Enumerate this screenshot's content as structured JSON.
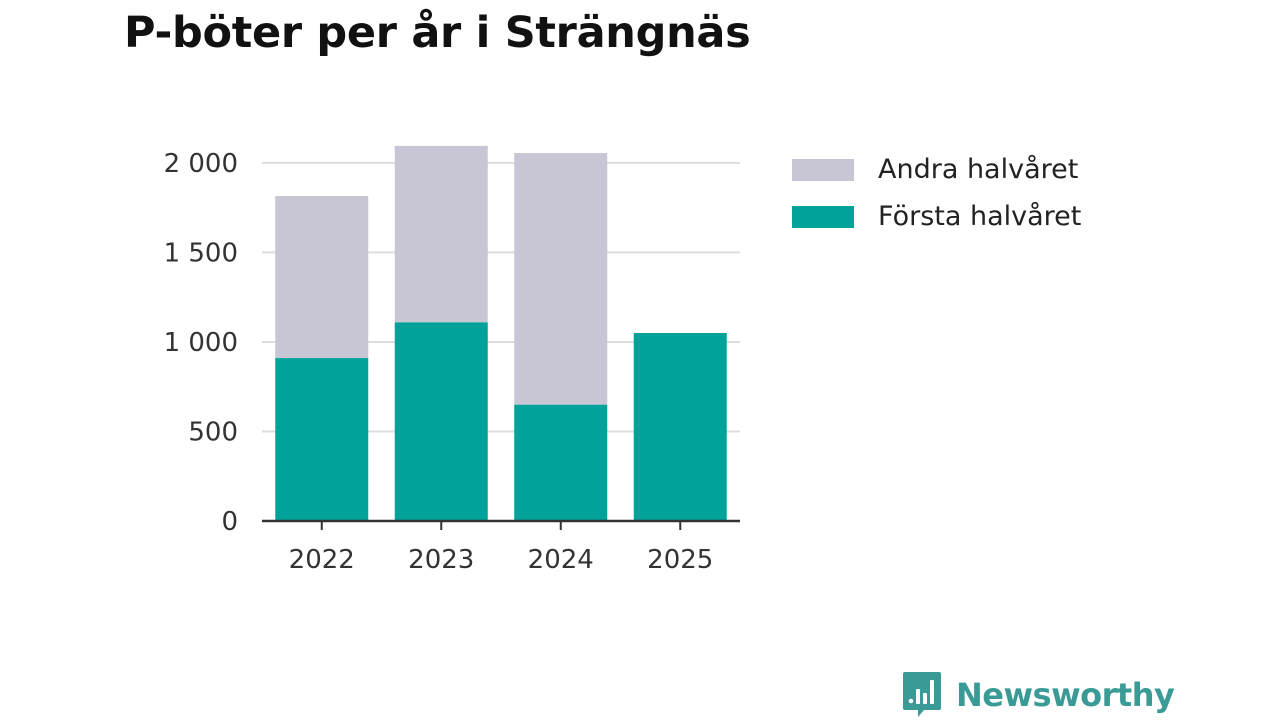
{
  "colors": {
    "first_half": "#00a29a",
    "second_half": "#c8c6d4",
    "brand": "#3a9a96"
  },
  "chart_data": {
    "type": "bar",
    "stacked": true,
    "title": "P-böter per år i Strängnäs",
    "categories": [
      "2022",
      "2023",
      "2024",
      "2025"
    ],
    "series": [
      {
        "name": "Första halvåret",
        "values": [
          910,
          1110,
          650,
          1050
        ]
      },
      {
        "name": "Andra halvåret",
        "values": [
          905,
          985,
          1405,
          0
        ]
      }
    ],
    "ylim": [
      0,
      2100
    ],
    "yticks": [
      0,
      500,
      1000,
      1500,
      2000
    ],
    "ytick_labels": [
      "0",
      "500",
      "1 000",
      "1 500",
      "2 000"
    ],
    "xlabel": "",
    "ylabel": "",
    "grid": true,
    "legend_position": "right",
    "legend": [
      "Andra halvåret",
      "Första halvåret"
    ]
  },
  "brand": {
    "name": "Newsworthy"
  }
}
